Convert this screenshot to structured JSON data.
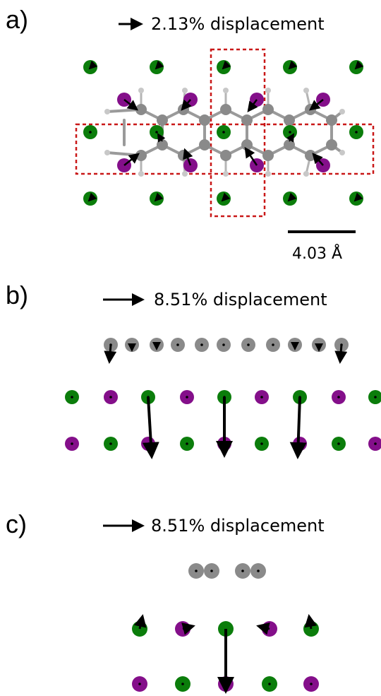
{
  "colors": {
    "green": "#0b7d0b",
    "purple": "#840f8a",
    "gray": "#8a8a8a",
    "light_gray": "#c8c8c8",
    "box": "#c91818",
    "arrow": "#000000"
  },
  "panels": {
    "a": {
      "label": "a)",
      "legend": "2.13% displacement"
    },
    "b": {
      "label": "b)",
      "legend": "8.51% displacement"
    },
    "c": {
      "label": "c)",
      "legend": "8.51% displacement"
    }
  },
  "scale_bar": {
    "label": "4.03 Å"
  },
  "icons": {
    "atom": "filled-circle",
    "displacement": "arrow"
  }
}
